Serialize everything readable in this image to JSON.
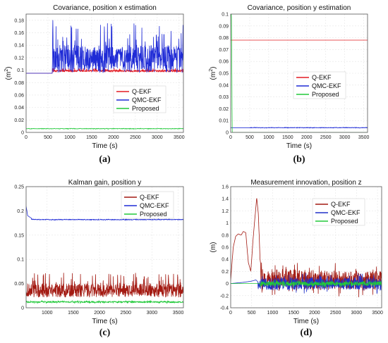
{
  "colors": {
    "q_ekf": "#e31b23",
    "qmc_ekf": "#1f2bd6",
    "proposed": "#22c93a",
    "q_ekf_d": "#a31a12",
    "qmc_ekf_d": "#2030c8"
  },
  "chart_data": [
    {
      "id": "a",
      "type": "line",
      "title": "Covariance, position x estimation",
      "xlabel": "Time (s)",
      "ylabel": "(m²)",
      "ylabel_main": "(m",
      "ylabel_sup": "2",
      "ylabel_end": ")",
      "caption": "(a)",
      "xlim": [
        0,
        3600
      ],
      "ylim": [
        0,
        0.19
      ],
      "xticks": [
        0,
        500,
        1000,
        1500,
        2000,
        2500,
        3000,
        3500
      ],
      "yticks": [
        0,
        0.02,
        0.04,
        0.06,
        0.08,
        0.1,
        0.12,
        0.14,
        0.16,
        0.18
      ],
      "yticklabels": [
        "0",
        "0.02",
        "0.04",
        "0.06",
        "0.08",
        "0.1",
        "0.12",
        "0.14",
        "0.16",
        "0.18"
      ],
      "legend_position": "center-right",
      "grid": true,
      "series": [
        {
          "name": "Q-EKF",
          "color_key": "q_ekf",
          "x": [
            0,
            600,
            601,
            3600
          ],
          "y": [
            0.095,
            0.095,
            0.098,
            0.098
          ],
          "noise": {
            "from": 600,
            "base": 0.097,
            "amp": 0.006,
            "up_only": true
          }
        },
        {
          "name": "QMC-EKF",
          "color_key": "qmc_ekf",
          "x": [
            0,
            600,
            610,
            620,
            3600
          ],
          "y": [
            0.095,
            0.095,
            0.19,
            0.14,
            0.14
          ],
          "noise": {
            "from": 620,
            "base": 0.096,
            "amp": 0.08,
            "up_only": true
          }
        },
        {
          "name": "Proposed",
          "color_key": "proposed",
          "x": [
            0,
            3600
          ],
          "y": [
            0.006,
            0.006
          ],
          "noise": {
            "from": 0,
            "base": 0.006,
            "amp": 0.0008
          }
        }
      ]
    },
    {
      "id": "b",
      "type": "line",
      "title": "Covariance, position y estimation",
      "xlabel": "Time (s)",
      "ylabel": "(m²)",
      "ylabel_main": "(m",
      "ylabel_sup": "2",
      "ylabel_end": ")",
      "caption": "(b)",
      "xlim": [
        0,
        3600
      ],
      "ylim": [
        0,
        0.1
      ],
      "xticks": [
        0,
        500,
        1000,
        1500,
        2000,
        2500,
        3000,
        3500
      ],
      "yticks": [
        0,
        0.01,
        0.02,
        0.03,
        0.04,
        0.05,
        0.06,
        0.07,
        0.08,
        0.09,
        0.1
      ],
      "yticklabels": [
        "0",
        "0.01",
        "0.02",
        "0.03",
        "0.04",
        "0.05",
        "0.06",
        "0.07",
        "0.08",
        "0.09",
        "0.1"
      ],
      "legend_position": "center-right",
      "grid": true,
      "series": [
        {
          "name": "Q-EKF",
          "color_key": "q_ekf",
          "x": [
            0,
            3600
          ],
          "y": [
            0.078,
            0.078
          ]
        },
        {
          "name": "QMC-EKF",
          "color_key": "qmc_ekf",
          "x": [
            0,
            3600
          ],
          "y": [
            0.004,
            0.004
          ],
          "noise": {
            "from": 500,
            "base": 0.004,
            "amp": 0.0004
          }
        },
        {
          "name": "Proposed",
          "color_key": "proposed",
          "x": [
            0,
            20,
            40,
            3600
          ],
          "y": [
            0.1,
            0.1,
            0.0,
            0.0
          ]
        }
      ]
    },
    {
      "id": "c",
      "type": "line",
      "title": "Kalman gain, position y",
      "xlabel": "Time (s)",
      "ylabel": "",
      "caption": "(c)",
      "xlim": [
        600,
        3600
      ],
      "ylim": [
        0,
        0.25
      ],
      "xticks": [
        1000,
        1500,
        2000,
        2500,
        3000,
        3500
      ],
      "yticks": [
        0,
        0.05,
        0.1,
        0.15,
        0.2,
        0.25
      ],
      "yticklabels": [
        "0",
        "0.05",
        "0.1",
        "0.15",
        "0.2",
        "0.25"
      ],
      "legend_position": "top-right",
      "grid": true,
      "series": [
        {
          "name": "Q-EKF",
          "color_key": "q_ekf_d",
          "x": [
            600,
            3600
          ],
          "y": [
            0.04,
            0.04
          ],
          "noise": {
            "from": 600,
            "base": 0.022,
            "amp": 0.05,
            "up_only": true
          }
        },
        {
          "name": "QMC-EKF",
          "color_key": "qmc_ekf",
          "x": [
            600,
            630,
            700,
            800,
            3600
          ],
          "y": [
            0.21,
            0.19,
            0.185,
            0.182,
            0.182
          ],
          "noise": {
            "from": 700,
            "base": 0.182,
            "amp": 0.0015
          }
        },
        {
          "name": "Proposed",
          "color_key": "proposed",
          "x": [
            600,
            3600
          ],
          "y": [
            0.012,
            0.012
          ],
          "noise": {
            "from": 600,
            "base": 0.012,
            "amp": 0.003
          }
        }
      ]
    },
    {
      "id": "d",
      "type": "line",
      "title": "Measurement innovation, position z",
      "xlabel": "Time (s)",
      "ylabel": "(m)",
      "caption": "(d)",
      "xlim": [
        0,
        3600
      ],
      "ylim": [
        -0.4,
        1.6
      ],
      "xticks": [
        0,
        500,
        1000,
        1500,
        2000,
        2500,
        3000,
        3500
      ],
      "yticks": [
        -0.4,
        -0.2,
        0,
        0.2,
        0.4,
        0.6,
        0.8,
        1,
        1.2,
        1.4,
        1.6
      ],
      "yticklabels": [
        "-0.4",
        "-0.2",
        "0",
        "0.2",
        "0.4",
        "0.6",
        "0.8",
        "1",
        "1.2",
        "1.4",
        "1.6"
      ],
      "legend_position": "center-right",
      "grid": true,
      "series": [
        {
          "name": "Q-EKF",
          "color_key": "q_ekf_d",
          "x": [
            0,
            60,
            120,
            180,
            250,
            300,
            360,
            420,
            480,
            530,
            580,
            620,
            660,
            700,
            740,
            800,
            3600
          ],
          "y": [
            0.05,
            0.6,
            0.78,
            0.82,
            0.8,
            0.86,
            0.84,
            0.35,
            0.2,
            0.7,
            1.1,
            1.42,
            1.15,
            0.4,
            0.2,
            0.15,
            0.05
          ],
          "noise": {
            "from": 720,
            "base": 0.05,
            "amp": 0.28
          }
        },
        {
          "name": "QMC-EKF",
          "color_key": "qmc_ekf_d",
          "x": [
            0,
            300,
            500,
            600,
            700,
            800,
            3600
          ],
          "y": [
            0,
            0.02,
            0.04,
            0.06,
            0.0,
            0.0,
            0.0
          ],
          "noise": {
            "from": 650,
            "base": 0.0,
            "amp": 0.18
          }
        },
        {
          "name": "Proposed",
          "color_key": "proposed",
          "x": [
            0,
            3600
          ],
          "y": [
            0.0,
            0.0
          ],
          "noise": {
            "from": 700,
            "base": 0.0,
            "amp": 0.06
          }
        }
      ]
    }
  ]
}
